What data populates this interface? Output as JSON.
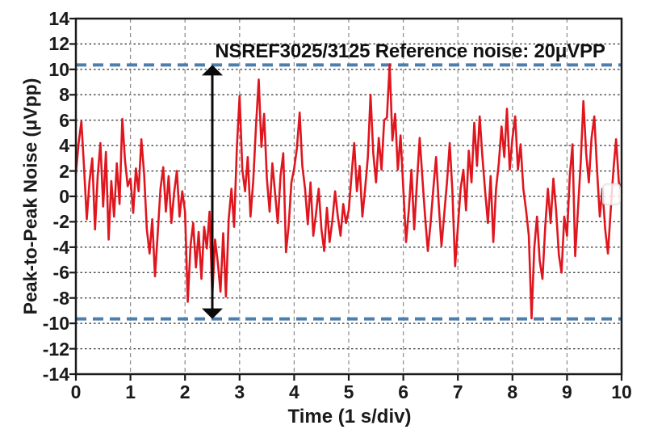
{
  "figure": {
    "background": "#ffffff"
  },
  "chart_data": {
    "type": "line",
    "title": "",
    "xlabel": "Time (1 s/div)",
    "ylabel": "Peak-to-Peak Noise (μVpp)",
    "xlim": [
      0,
      10
    ],
    "ylim": [
      -14,
      14
    ],
    "x_ticks": [
      0,
      1,
      2,
      3,
      4,
      5,
      6,
      7,
      8,
      9,
      10
    ],
    "y_ticks": [
      -14,
      -12,
      -10,
      -8,
      -6,
      -4,
      -2,
      0,
      2,
      4,
      6,
      8,
      10,
      12,
      14
    ],
    "grid": true,
    "legend": "none",
    "annotation": {
      "text": "NSREF3025/3125 Reference noise: 20μVPP"
    },
    "reference_lines": [
      {
        "label": "upper-noise-bound",
        "y": 10.35
      },
      {
        "label": "lower-noise-bound",
        "y": -9.65
      }
    ],
    "arrow": {
      "x": 2.5,
      "from": 10.35,
      "to": -9.65
    },
    "colors": {
      "trace": "#e0161f",
      "reference_line": "#4d7fae",
      "grid_horizontal": "#2e2e2e",
      "grid_vertical": "#8f8f8f",
      "axis": "#1a1a1a",
      "text": "#1a1a1a",
      "arrow": "#0a0a0a"
    },
    "series": [
      {
        "name": "reference-noise",
        "color": "#e0161f",
        "x_start": 0,
        "x_step": 0.05,
        "values": [
          1.8,
          4.2,
          5.9,
          2.3,
          -1.8,
          1.2,
          3.0,
          -2.6,
          1.6,
          4.2,
          -0.8,
          3.5,
          -3.4,
          1.2,
          -1.6,
          2.6,
          -0.6,
          6.1,
          2.9,
          0.8,
          1.4,
          -1.3,
          2.2,
          0.4,
          4.5,
          1.8,
          -2.6,
          -4.5,
          -1.8,
          -6.3,
          -2.9,
          0.6,
          2.3,
          -1.2,
          1.6,
          -2.1,
          0.3,
          2.0,
          -1.6,
          0.4,
          -1.2,
          -8.3,
          -3.9,
          -2.1,
          -5.6,
          -2.8,
          -6.5,
          -2.4,
          -4.1,
          -1.2,
          -7.9,
          -3.4,
          -5.2,
          -7.5,
          -2.9,
          -7.9,
          -1.8,
          0.6,
          -2.4,
          3.8,
          7.9,
          2.1,
          0.4,
          3.1,
          -1.6,
          1.2,
          5.5,
          9.2,
          3.9,
          6.5,
          1.4,
          -1.2,
          2.6,
          0.3,
          -2.1,
          1.6,
          3.4,
          -4.4,
          -2.3,
          1.1,
          2.2,
          3.8,
          6.6,
          2.4,
          0.6,
          -2.2,
          1.1,
          -3.1,
          -1.4,
          0.6,
          -2.6,
          -4.3,
          -0.9,
          -3.6,
          -1.9,
          0.4,
          -1.6,
          -3.1,
          -0.6,
          -2.1,
          -1.1,
          1.6,
          4.2,
          0.4,
          2.4,
          -1.6,
          0.6,
          3.1,
          8.0,
          3.4,
          1.1,
          4.6,
          2.1,
          6.0,
          6.2,
          10.4,
          4.4,
          6.5,
          2.1,
          4.8,
          0.6,
          -3.6,
          -1.1,
          2.1,
          -2.6,
          1.1,
          4.6,
          1.4,
          -1.6,
          -4.3,
          -2.1,
          0.6,
          3.1,
          -0.6,
          -3.9,
          -1.4,
          1.1,
          4.2,
          0.4,
          -5.5,
          -2.4,
          0.6,
          2.1,
          -1.1,
          3.6,
          1.1,
          5.8,
          2.4,
          6.3,
          3.1,
          0.4,
          -2.1,
          1.6,
          -3.6,
          0.6,
          2.6,
          5.5,
          3.1,
          6.9,
          2.1,
          4.6,
          6.3,
          2.1,
          4.1,
          0.6,
          -1.1,
          -3.1,
          -9.6,
          -4.1,
          -1.6,
          -5.1,
          -6.5,
          -2.4,
          0.6,
          -2.1,
          1.4,
          -1.1,
          -4.6,
          -6.0,
          -1.6,
          -3.1,
          1.6,
          4.1,
          -4.7,
          -1.1,
          2.6,
          7.5,
          3.4,
          1.1,
          4.6,
          6.3,
          2.1,
          -1.6,
          0.6,
          -2.6,
          -4.5,
          -1.1,
          2.1,
          4.5,
          1.1,
          0.3
        ]
      }
    ]
  }
}
